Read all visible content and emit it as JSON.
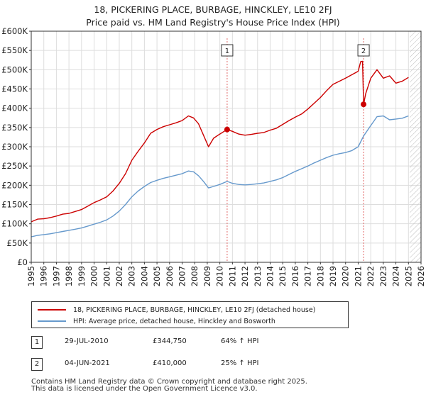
{
  "colors": {
    "price": "#cc0000",
    "hpi": "#6699cc",
    "vline": "#e06666",
    "grid": "#dddddd",
    "axis": "#333333",
    "hatch": "#bbbbbb"
  },
  "chart_data": {
    "type": "line",
    "title": "18, PICKERING PLACE, BURBAGE, HINCKLEY, LE10 2FJ",
    "subtitle": "Price paid vs. HM Land Registry's House Price Index (HPI)",
    "xlabel": "",
    "ylabel": "",
    "xlim": [
      1995,
      2026
    ],
    "ylim": [
      0,
      600000
    ],
    "grid": true,
    "x_ticks": [
      1995,
      1996,
      1997,
      1998,
      1999,
      2000,
      2001,
      2002,
      2003,
      2004,
      2005,
      2006,
      2007,
      2008,
      2009,
      2010,
      2011,
      2012,
      2013,
      2014,
      2015,
      2016,
      2017,
      2018,
      2019,
      2020,
      2021,
      2022,
      2023,
      2024,
      2025,
      2026
    ],
    "x_tick_labels": [
      "1995",
      "1996",
      "1997",
      "1998",
      "1999",
      "2000",
      "2001",
      "2002",
      "2003",
      "2004",
      "2005",
      "2006",
      "2007",
      "2008",
      "2009",
      "2010",
      "2011",
      "2012",
      "2013",
      "2014",
      "2015",
      "2016",
      "2017",
      "2018",
      "2019",
      "2020",
      "2021",
      "2022",
      "2023",
      "2024",
      "2025",
      "2026"
    ],
    "y_ticks": [
      0,
      50000,
      100000,
      150000,
      200000,
      250000,
      300000,
      350000,
      400000,
      450000,
      500000,
      550000,
      600000
    ],
    "y_tick_labels": [
      "£0",
      "£50K",
      "£100K",
      "£150K",
      "£200K",
      "£250K",
      "£300K",
      "£350K",
      "£400K",
      "£450K",
      "£500K",
      "£550K",
      "£600K"
    ],
    "forecast_start": 2025.1,
    "series": [
      {
        "name": "18, PICKERING PLACE, BURBAGE, HINCKLEY, LE10 2FJ (detached house)",
        "color": "#cc0000",
        "x": [
          1995.0,
          1995.5,
          1996.0,
          1996.5,
          1997.0,
          1997.5,
          1998.0,
          1998.5,
          1999.0,
          1999.5,
          2000.0,
          2000.5,
          2001.0,
          2001.5,
          2002.0,
          2002.5,
          2003.0,
          2003.5,
          2004.0,
          2004.5,
          2005.0,
          2005.5,
          2006.0,
          2006.5,
          2007.0,
          2007.5,
          2007.9,
          2008.3,
          2008.7,
          2009.1,
          2009.5,
          2010.0,
          2010.58,
          2011.0,
          2011.5,
          2012.0,
          2012.5,
          2013.0,
          2013.5,
          2014.0,
          2014.5,
          2015.0,
          2015.5,
          2016.0,
          2016.5,
          2017.0,
          2017.5,
          2018.0,
          2018.5,
          2019.0,
          2019.5,
          2020.0,
          2020.5,
          2021.0,
          2021.2,
          2021.35,
          2021.43,
          2021.6,
          2022.0,
          2022.5,
          2023.0,
          2023.5,
          2024.0,
          2024.5,
          2025.0
        ],
        "y": [
          105000,
          112000,
          113000,
          116000,
          120000,
          125000,
          127000,
          132000,
          137000,
          146000,
          155000,
          162000,
          170000,
          185000,
          205000,
          230000,
          265000,
          288000,
          310000,
          335000,
          345000,
          352000,
          357000,
          362000,
          368000,
          380000,
          375000,
          360000,
          330000,
          300000,
          322000,
          333000,
          344750,
          340000,
          333000,
          330000,
          332000,
          335000,
          337000,
          343000,
          348000,
          358000,
          368000,
          377000,
          385000,
          398000,
          413000,
          428000,
          446000,
          462000,
          470000,
          478000,
          487000,
          496000,
          521000,
          522000,
          410000,
          438000,
          478000,
          500000,
          478000,
          484000,
          465000,
          470000,
          480000
        ]
      },
      {
        "name": "HPI: Average price, detached house, Hinckley and Bosworth",
        "color": "#6699cc",
        "x": [
          1995.0,
          1995.5,
          1996.0,
          1996.5,
          1997.0,
          1997.5,
          1998.0,
          1998.5,
          1999.0,
          1999.5,
          2000.0,
          2000.5,
          2001.0,
          2001.5,
          2002.0,
          2002.5,
          2003.0,
          2003.5,
          2004.0,
          2004.5,
          2005.0,
          2005.5,
          2006.0,
          2006.5,
          2007.0,
          2007.5,
          2007.9,
          2008.3,
          2008.7,
          2009.1,
          2009.5,
          2010.0,
          2010.58,
          2011.0,
          2011.5,
          2012.0,
          2012.5,
          2013.0,
          2013.5,
          2014.0,
          2014.5,
          2015.0,
          2015.5,
          2016.0,
          2016.5,
          2017.0,
          2017.5,
          2018.0,
          2018.5,
          2019.0,
          2019.5,
          2020.0,
          2020.5,
          2021.0,
          2021.43,
          2022.0,
          2022.5,
          2023.0,
          2023.5,
          2024.0,
          2024.5,
          2025.0
        ],
        "y": [
          66000,
          70000,
          72000,
          74000,
          77000,
          80000,
          83000,
          86000,
          89000,
          94000,
          99000,
          104000,
          110000,
          120000,
          133000,
          150000,
          170000,
          185000,
          197000,
          207000,
          213000,
          218000,
          222000,
          226000,
          230000,
          237000,
          235000,
          225000,
          210000,
          193000,
          197000,
          202000,
          210000,
          205000,
          202000,
          201000,
          202000,
          204000,
          206000,
          210000,
          214000,
          220000,
          228000,
          236000,
          243000,
          250000,
          258000,
          265000,
          272000,
          278000,
          282000,
          285000,
          290000,
          300000,
          328000,
          355000,
          378000,
          380000,
          370000,
          372000,
          374000,
          380000
        ]
      }
    ],
    "sales": [
      {
        "marker": "1",
        "x": 2010.58,
        "price": 344750,
        "date": "29-JUL-2010",
        "price_label": "£344,750",
        "hpi_label": "64% ↑ HPI"
      },
      {
        "marker": "2",
        "x": 2021.43,
        "price": 410000,
        "date": "04-JUN-2021",
        "price_label": "£410,000",
        "hpi_label": "25% ↑ HPI"
      }
    ]
  },
  "legend": {
    "price_label": "18, PICKERING PLACE, BURBAGE, HINCKLEY, LE10 2FJ (detached house)",
    "hpi_label": "HPI: Average price, detached house, Hinckley and Bosworth"
  },
  "footer": {
    "line1": "Contains HM Land Registry data © Crown copyright and database right 2025.",
    "line2": "This data is licensed under the Open Government Licence v3.0."
  }
}
